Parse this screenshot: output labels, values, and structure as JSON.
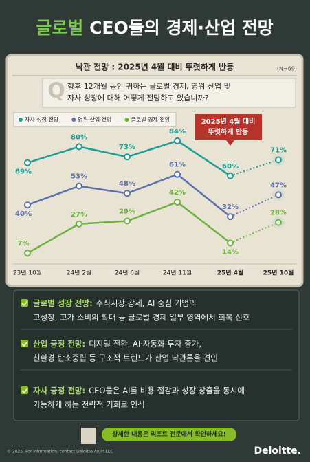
{
  "title": {
    "highlight": "글로벌",
    "rest": "CEO들의 경제·산업 전망"
  },
  "chart_data": {
    "type": "line",
    "header": "낙관 전망 : 2025년 4월 대비 뚜렷하게 반등",
    "sample": "(N=69)",
    "question_mark": "Q",
    "question": [
      "향후 12개월 동안 귀하는 글로벌 경제, 영위 산업 및",
      "자사 성장에 대해 어떻게 전망하고 있습니까?"
    ],
    "callout": [
      "2025년 4월 대비",
      "뚜렷하게 반등"
    ],
    "categories": [
      "23년 10월",
      "24년 2월",
      "24년 6월",
      "24년 11월",
      "25년 4월",
      "25년 10월"
    ],
    "series": [
      {
        "name": "자사 성장 전망",
        "color": "#1a9e96",
        "values": [
          69,
          80,
          73,
          84,
          60,
          71
        ],
        "value_labels": [
          "69%",
          "80%",
          "73%",
          "84%",
          "60%",
          "71%"
        ]
      },
      {
        "name": "영위 산업 전망",
        "color": "#5b6fb0",
        "values": [
          40,
          53,
          48,
          61,
          32,
          47
        ],
        "value_labels": [
          "40%",
          "53%",
          "48%",
          "61%",
          "32%",
          "47%"
        ]
      },
      {
        "name": "글로벌 경제 전망",
        "color": "#6cb33f",
        "values": [
          7,
          27,
          29,
          42,
          14,
          28
        ],
        "value_labels": [
          "7%",
          "27%",
          "29%",
          "42%",
          "14%",
          "28%"
        ]
      }
    ]
  },
  "bullets": [
    {
      "lead": "글로벌 성장 전망:",
      "lines": [
        "주식시장 강세, AI 중심 기업의",
        "고성장, 고가 소비의 확대 등 글로벌 경제 일부 영역에서 회복 신호"
      ]
    },
    {
      "lead": "산업 긍정 전망:",
      "lines": [
        "디지털 전환, AI·자동화 투자 증가,",
        "친환경·탄소중립 등 구조적 트렌드가 산업 낙관론을 견인"
      ]
    },
    {
      "lead": "자사 긍정 전망:",
      "lines": [
        "CEO들은 AI를 비용 절감과 성장 창출을 동시에",
        "가능하게 하는 전략적 기회로 인식"
      ]
    }
  ],
  "footer": {
    "button": "상세한 내용은 리포트 전문에서 확인하세요!",
    "copyright": "© 2025. For information, contact Deloitte Anjin LLC",
    "logo": "Deloitte."
  }
}
